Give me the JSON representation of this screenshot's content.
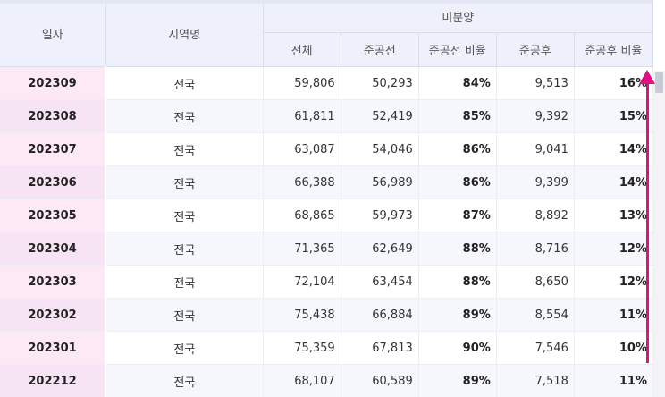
{
  "header": {
    "date": "일자",
    "region": "지역명",
    "group": "미분양",
    "total": "전체",
    "pre": "준공전",
    "pre_ratio": "준공전 비율",
    "post": "준공후",
    "post_ratio": "준공후 비율"
  },
  "rows": [
    {
      "date": "202309",
      "region": "전국",
      "total": "59,806",
      "pre": "50,293",
      "pre_ratio": "84%",
      "post": "9,513",
      "post_ratio": "16%"
    },
    {
      "date": "202308",
      "region": "전국",
      "total": "61,811",
      "pre": "52,419",
      "pre_ratio": "85%",
      "post": "9,392",
      "post_ratio": "15%"
    },
    {
      "date": "202307",
      "region": "전국",
      "total": "63,087",
      "pre": "54,046",
      "pre_ratio": "86%",
      "post": "9,041",
      "post_ratio": "14%"
    },
    {
      "date": "202306",
      "region": "전국",
      "total": "66,388",
      "pre": "56,989",
      "pre_ratio": "86%",
      "post": "9,399",
      "post_ratio": "14%"
    },
    {
      "date": "202305",
      "region": "전국",
      "total": "68,865",
      "pre": "59,973",
      "pre_ratio": "87%",
      "post": "8,892",
      "post_ratio": "13%"
    },
    {
      "date": "202304",
      "region": "전국",
      "total": "71,365",
      "pre": "62,649",
      "pre_ratio": "88%",
      "post": "8,716",
      "post_ratio": "12%"
    },
    {
      "date": "202303",
      "region": "전국",
      "total": "72,104",
      "pre": "63,454",
      "pre_ratio": "88%",
      "post": "8,650",
      "post_ratio": "12%"
    },
    {
      "date": "202302",
      "region": "전국",
      "total": "75,438",
      "pre": "66,884",
      "pre_ratio": "89%",
      "post": "8,554",
      "post_ratio": "11%"
    },
    {
      "date": "202301",
      "region": "전국",
      "total": "75,359",
      "pre": "67,813",
      "pre_ratio": "90%",
      "post": "7,546",
      "post_ratio": "10%"
    },
    {
      "date": "202212",
      "region": "전국",
      "total": "68,107",
      "pre": "60,589",
      "pre_ratio": "89%",
      "post": "7,518",
      "post_ratio": "11%"
    }
  ],
  "colors": {
    "header_bg": "#eef1fb",
    "date_bg": "#fde8f5",
    "annotation_arrow": "#e0107e"
  }
}
